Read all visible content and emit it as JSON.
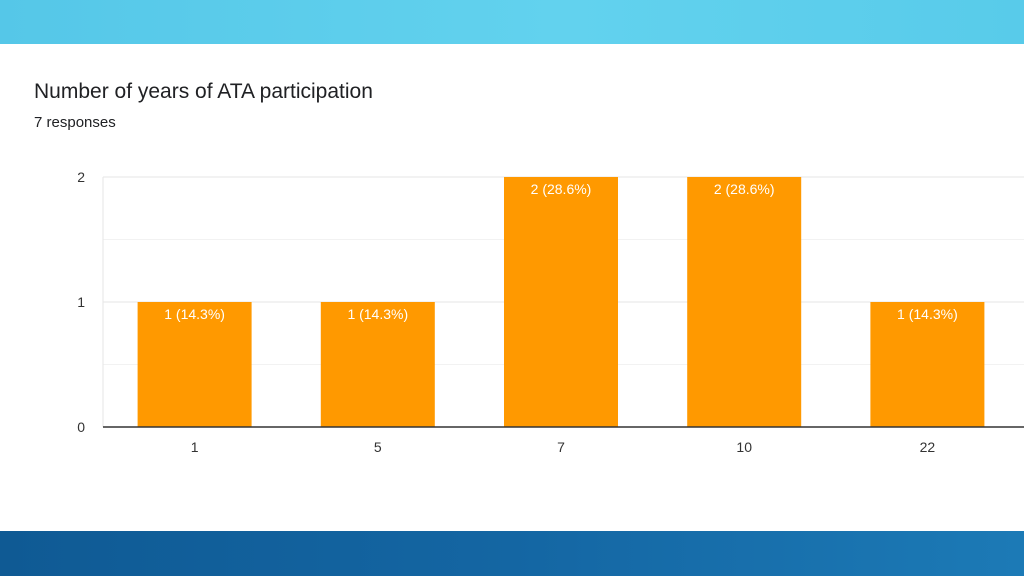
{
  "colors": {
    "bar": "#ff9900",
    "grid_major": "#e6e6e6",
    "grid_minor": "#f2f2f2",
    "axis": "#333333",
    "top_band": "#5ccdeb",
    "bottom_band": "#1466a3"
  },
  "chart_data": {
    "type": "bar",
    "title": "Number of years of ATA participation",
    "subtitle": "7 responses",
    "categories": [
      "1",
      "5",
      "7",
      "10",
      "22"
    ],
    "values": [
      1,
      1,
      2,
      2,
      1
    ],
    "data_labels": [
      "1 (14.3%)",
      "1 (14.3%)",
      "2 (28.6%)",
      "2 (28.6%)",
      "1 (14.3%)"
    ],
    "y_ticks": [
      "0",
      "1",
      "2"
    ],
    "ylim": [
      0,
      2
    ],
    "xlabel": "",
    "ylabel": "",
    "grid": true
  }
}
